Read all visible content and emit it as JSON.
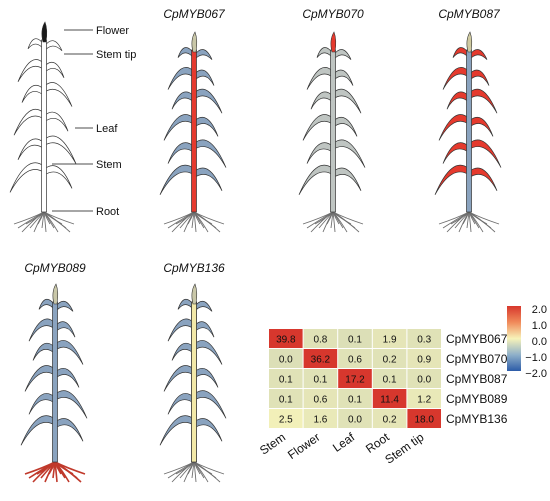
{
  "figure": {
    "labels": {
      "flower": "Flower",
      "stem_tip": "Stem tip",
      "leaf": "Leaf",
      "stem": "Stem",
      "root": "Root"
    },
    "plants": [
      {
        "title": "CpMYB067",
        "highlight": "stem",
        "color": "#e53a2e"
      },
      {
        "title": "CpMYB070",
        "highlight": "flower",
        "color": "#e53a2e"
      },
      {
        "title": "CpMYB087",
        "highlight": "leaf",
        "color": "#e53a2e"
      },
      {
        "title": "CpMYB089",
        "highlight": "root",
        "color": "#c0392b"
      },
      {
        "title": "CpMYB136",
        "highlight": "stem_tip",
        "color": "#f3e9a8"
      }
    ],
    "heatmap": {
      "columns": [
        "Stem",
        "Flower",
        "Leaf",
        "Root",
        "Stem tip"
      ],
      "rows": [
        "CpMYB067",
        "CpMYB070",
        "CpMYB087",
        "CpMYB089",
        "CpMYB136"
      ],
      "values": [
        [
          "39.8",
          "0.8",
          "0.1",
          "1.9",
          "0.3"
        ],
        [
          "0.0",
          "36.2",
          "0.6",
          "0.2",
          "0.9"
        ],
        [
          "0.1",
          "0.1",
          "17.2",
          "0.1",
          "0.0"
        ],
        [
          "0.1",
          "0.6",
          "0.1",
          "11.4",
          "1.2"
        ],
        [
          "2.5",
          "1.6",
          "0.0",
          "0.2",
          "18.0"
        ]
      ],
      "zscore": [
        [
          2.0,
          -0.5,
          -0.6,
          -0.4,
          -0.5
        ],
        [
          -0.6,
          2.0,
          -0.5,
          -0.5,
          -0.4
        ],
        [
          -0.5,
          -0.5,
          2.0,
          -0.5,
          -0.5
        ],
        [
          -0.5,
          -0.4,
          -0.5,
          2.0,
          -0.3
        ],
        [
          -0.1,
          -0.3,
          -0.5,
          -0.4,
          2.0
        ]
      ],
      "legend_ticks": [
        "2.0",
        "1.0",
        "0.0",
        "−1.0",
        "−2.0"
      ],
      "colors": {
        "high": "#d7372d",
        "mid": "#f7f3b9",
        "low": "#2c5ca8"
      }
    }
  }
}
